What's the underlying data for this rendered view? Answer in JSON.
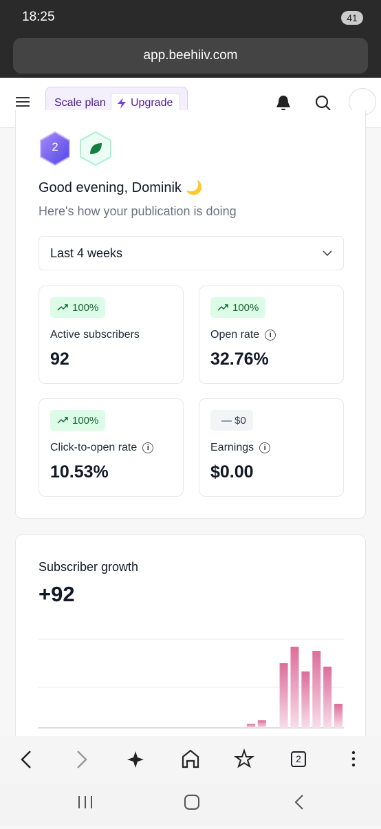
{
  "status_bar": {
    "time": "18:25",
    "battery": "41"
  },
  "browser": {
    "url": "app.beehiiv.com",
    "tab_count": "2"
  },
  "header": {
    "plan": "Scale plan",
    "upgrade": "Upgrade"
  },
  "overview": {
    "level_badge": "2",
    "greeting": "Good evening, Dominik 🌙",
    "subtitle": "Here's how your publication is doing",
    "period": "Last 4 weeks",
    "cards": [
      {
        "change": "100%",
        "label": "Active subscribers",
        "value": "92"
      },
      {
        "change": "100%",
        "label": "Open rate",
        "value": "32.76%"
      },
      {
        "change": "100%",
        "label": "Click-to-open rate",
        "value": "10.53%"
      },
      {
        "change": "— $0",
        "label": "Earnings",
        "value": "$0.00"
      }
    ]
  },
  "subscriber_growth": {
    "title": "Subscriber growth",
    "total": "+92",
    "chart": {
      "type": "bar",
      "values": [
        0,
        0,
        0,
        0,
        0,
        0,
        0,
        0,
        0,
        0,
        0,
        0,
        0,
        0,
        0,
        0,
        0,
        0,
        0,
        6,
        11,
        0,
        94,
        118,
        82,
        112,
        89,
        35
      ],
      "ylim": [
        0,
        130
      ]
    }
  }
}
